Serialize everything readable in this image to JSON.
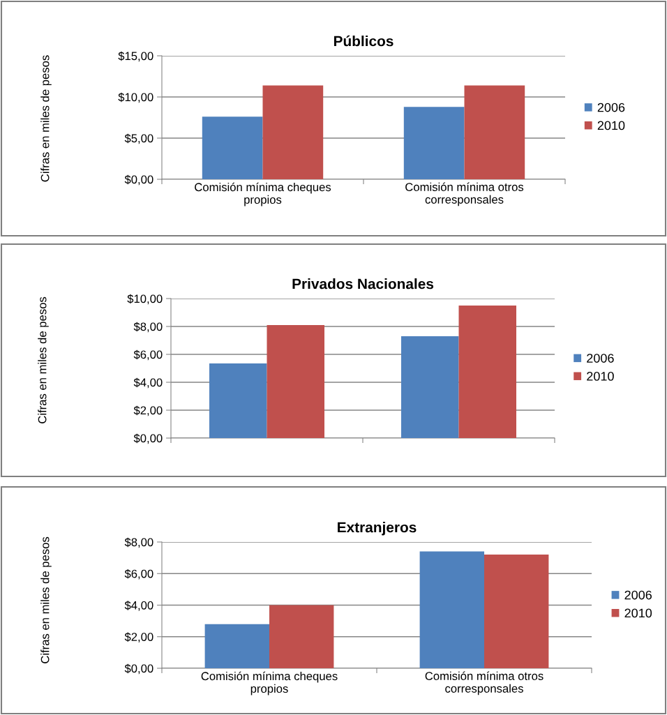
{
  "chart_data": [
    {
      "type": "bar",
      "title": "Públicos",
      "ylabel": "Cifras en miles de pesos",
      "categories": [
        "Comisión mínima cheques\npropios",
        "Comisión mínima otros\ncorresponsales"
      ],
      "series": [
        {
          "name": "2006",
          "color": "#4f81bd",
          "values": [
            7.6,
            8.8
          ]
        },
        {
          "name": "2010",
          "color": "#c0504d",
          "values": [
            11.4,
            11.4
          ]
        }
      ],
      "ylim": [
        0,
        15
      ],
      "yticks": [
        {
          "value": 0,
          "label": "$0,00"
        },
        {
          "value": 5,
          "label": "$5,00"
        },
        {
          "value": 10,
          "label": "$10,00"
        },
        {
          "value": 15,
          "label": "$15,00"
        }
      ],
      "grid": "y",
      "legend": "right"
    },
    {
      "type": "bar",
      "title": "Privados Nacionales",
      "ylabel": "Cifras en miles de pesos",
      "categories": [
        null,
        null
      ],
      "series": [
        {
          "name": "2006",
          "color": "#4f81bd",
          "values": [
            5.35,
            7.3
          ]
        },
        {
          "name": "2010",
          "color": "#c0504d",
          "values": [
            8.1,
            9.5
          ]
        }
      ],
      "ylim": [
        0,
        10
      ],
      "yticks": [
        {
          "value": 0,
          "label": "$0,00"
        },
        {
          "value": 2,
          "label": "$2,00"
        },
        {
          "value": 4,
          "label": "$4,00"
        },
        {
          "value": 6,
          "label": "$6,00"
        },
        {
          "value": 8,
          "label": "$8,00"
        },
        {
          "value": 10,
          "label": "$10,00"
        }
      ],
      "grid": "y",
      "legend": "right"
    },
    {
      "type": "bar",
      "title": "Extranjeros",
      "ylabel": "Cifras en miles de pesos",
      "categories": [
        "Comisión mínima cheques\npropios",
        "Comisión mínima otros\ncorresponsales"
      ],
      "series": [
        {
          "name": "2006",
          "color": "#4f81bd",
          "values": [
            2.8,
            7.4
          ]
        },
        {
          "name": "2010",
          "color": "#c0504d",
          "values": [
            4.0,
            7.2
          ]
        }
      ],
      "ylim": [
        0,
        8
      ],
      "yticks": [
        {
          "value": 0,
          "label": "$0,00"
        },
        {
          "value": 2,
          "label": "$2,00"
        },
        {
          "value": 4,
          "label": "$4,00"
        },
        {
          "value": 6,
          "label": "$6,00"
        },
        {
          "value": 8,
          "label": "$8,00"
        }
      ],
      "grid": "y",
      "legend": "right"
    }
  ]
}
